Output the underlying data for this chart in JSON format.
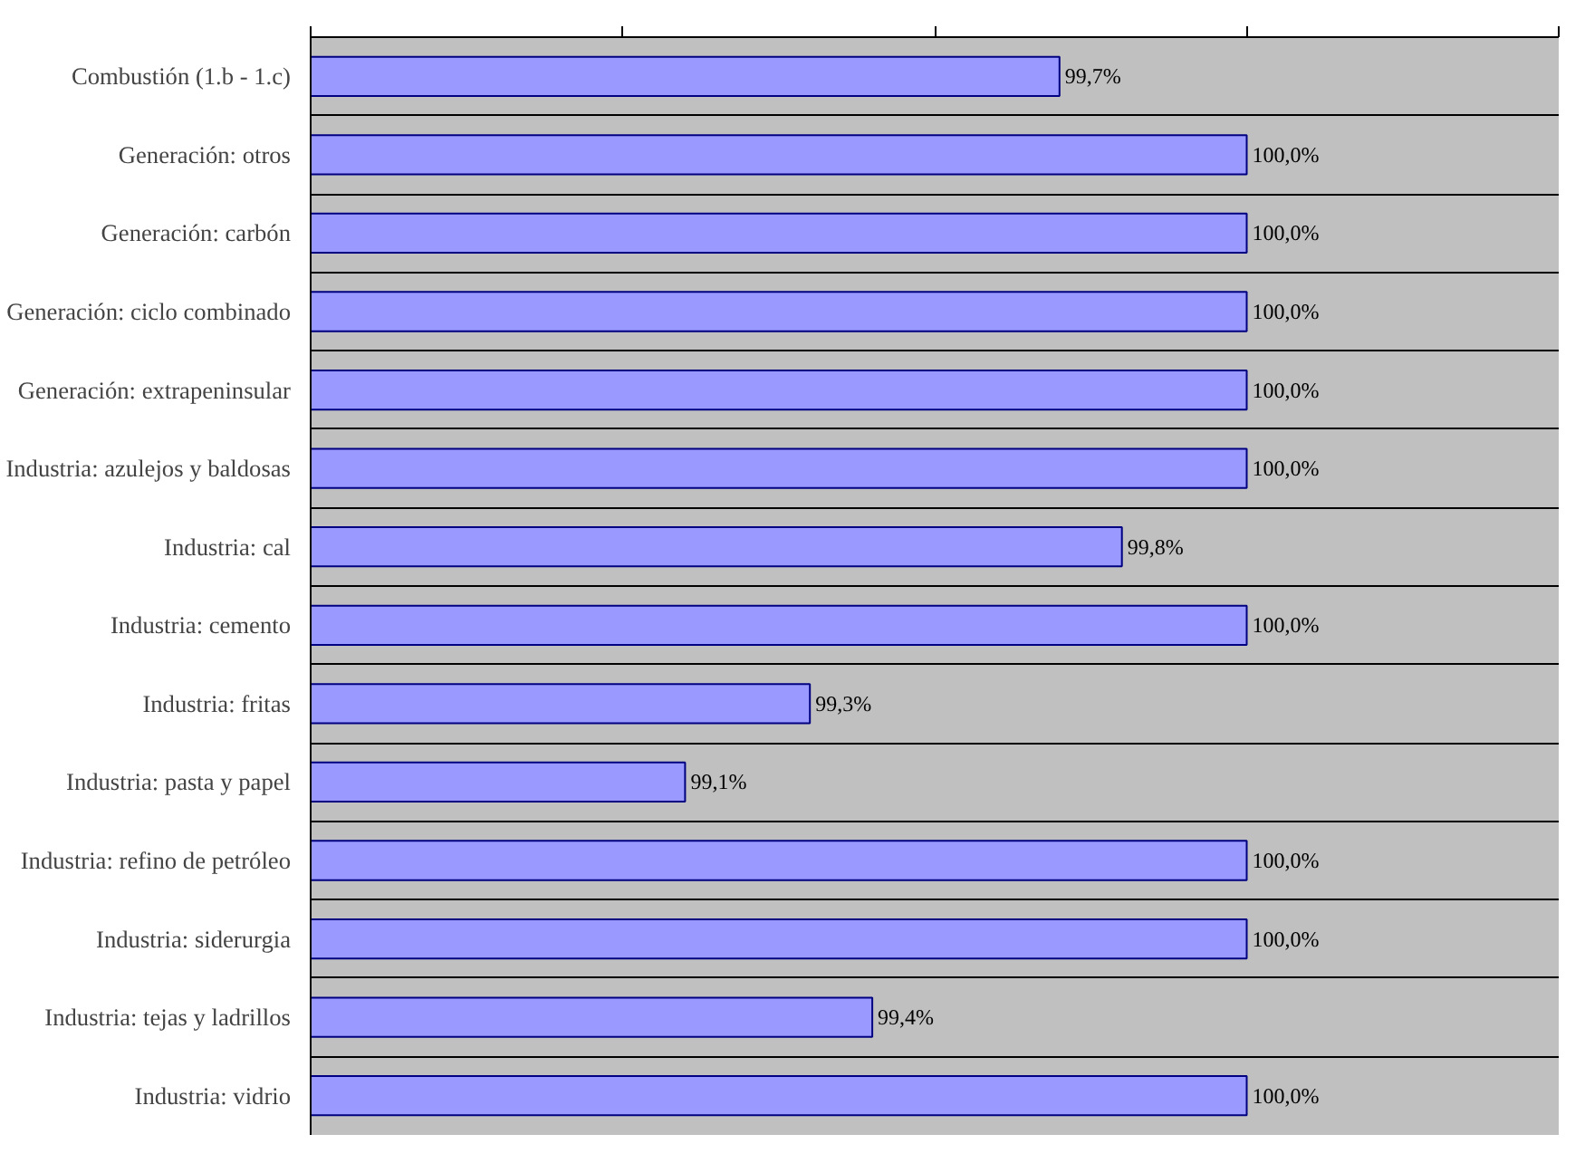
{
  "chart_data": {
    "type": "bar",
    "orientation": "horizontal",
    "categories": [
      "Combustión (1.b - 1.c)",
      "Generación: otros",
      "Generación: carbón",
      "Generación: ciclo combinado",
      "Generación: extrapeninsular",
      "Industria: azulejos y baldosas",
      "Industria: cal",
      "Industria: cemento",
      "Industria: fritas",
      "Industria: pasta y papel",
      "Industria: refino de petróleo",
      "Industria: siderurgia",
      "Industria: tejas y ladrillos",
      "Industria: vidrio"
    ],
    "values": [
      99.7,
      100.0,
      100.0,
      100.0,
      100.0,
      100.0,
      99.8,
      100.0,
      99.3,
      99.1,
      100.0,
      100.0,
      99.4,
      100.0
    ],
    "value_labels": [
      "99,7%",
      "100,0%",
      "100,0%",
      "100,0%",
      "100,0%",
      "100,0%",
      "99,8%",
      "100,0%",
      "99,3%",
      "99,1%",
      "100,0%",
      "100,0%",
      "99,4%",
      "100,0%"
    ],
    "color": "#9999ff",
    "xlim": [
      98.5,
      100.5
    ],
    "xticks": [
      {
        "value": 98.5,
        "label": null
      },
      {
        "value": 99.0,
        "label": null
      },
      {
        "value": 99.5,
        "label": null
      },
      {
        "value": 100.0,
        "label": null
      },
      {
        "value": 100.5,
        "label": null
      }
    ],
    "tick_labels": "y",
    "grid": "y"
  }
}
